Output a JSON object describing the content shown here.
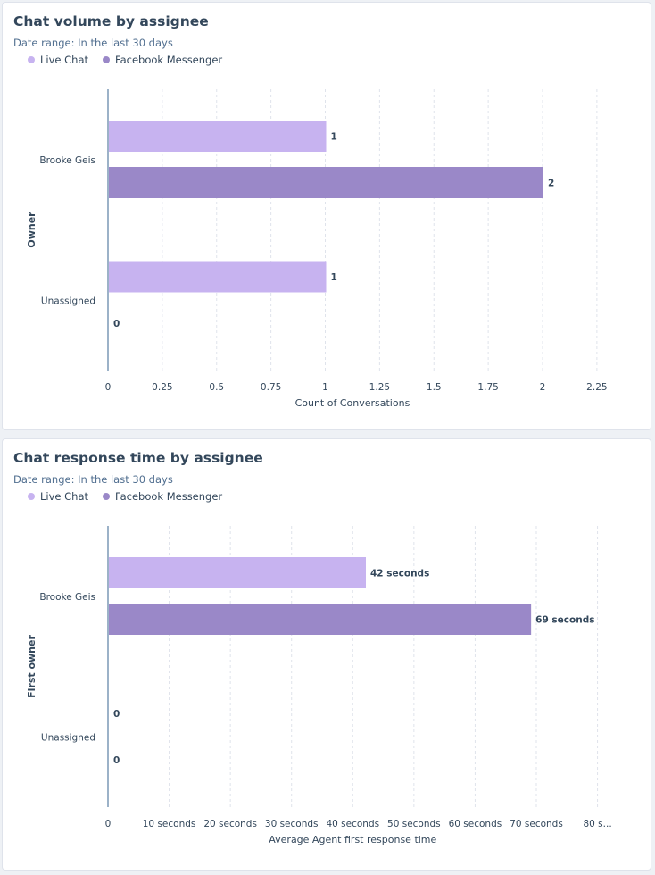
{
  "colors": {
    "live_chat": "#c7b3f0",
    "facebook_messenger": "#9a88c8",
    "text": "#33475b",
    "grid": "#dfe3eb",
    "axis": "#7c98b6"
  },
  "chart_data": [
    {
      "type": "bar",
      "orientation": "horizontal",
      "title": "Chat volume by assignee",
      "subtitle": "Date range: In the last 30 days",
      "legend": "top-left",
      "grid": true,
      "categories": [
        "Brooke Geis",
        "Unassigned"
      ],
      "series": [
        {
          "name": "Live Chat",
          "values": [
            1,
            1
          ],
          "labels": [
            "1",
            "1"
          ]
        },
        {
          "name": "Facebook Messenger",
          "values": [
            2,
            0
          ],
          "labels": [
            "2",
            "0"
          ]
        }
      ],
      "xlabel": "Count of Conversations",
      "ylabel": "Owner",
      "xlim": [
        0,
        2.25
      ],
      "xticks": [
        0,
        0.25,
        0.5,
        0.75,
        1,
        1.25,
        1.5,
        1.75,
        2,
        2.25
      ],
      "xtick_labels": [
        "0",
        "0.25",
        "0.5",
        "0.75",
        "1",
        "1.25",
        "1.5",
        "1.75",
        "2",
        "2.25"
      ]
    },
    {
      "type": "bar",
      "orientation": "horizontal",
      "title": "Chat response time by assignee",
      "subtitle": "Date range: In the last 30 days",
      "legend": "top-left",
      "grid": true,
      "categories": [
        "Brooke Geis",
        "Unassigned"
      ],
      "series": [
        {
          "name": "Live Chat",
          "values": [
            42,
            0
          ],
          "labels": [
            "42 seconds",
            "0"
          ]
        },
        {
          "name": "Facebook Messenger",
          "values": [
            69,
            0
          ],
          "labels": [
            "69 seconds",
            "0"
          ]
        }
      ],
      "xlabel": "Average Agent first response time",
      "ylabel": "First owner",
      "xlim": [
        0,
        80
      ],
      "xticks": [
        0,
        10,
        20,
        30,
        40,
        50,
        60,
        70,
        80
      ],
      "xtick_labels": [
        "0",
        "10 seconds",
        "20 seconds",
        "30 seconds",
        "40 seconds",
        "50 seconds",
        "60 seconds",
        "70 seconds",
        "80 s..."
      ]
    }
  ]
}
